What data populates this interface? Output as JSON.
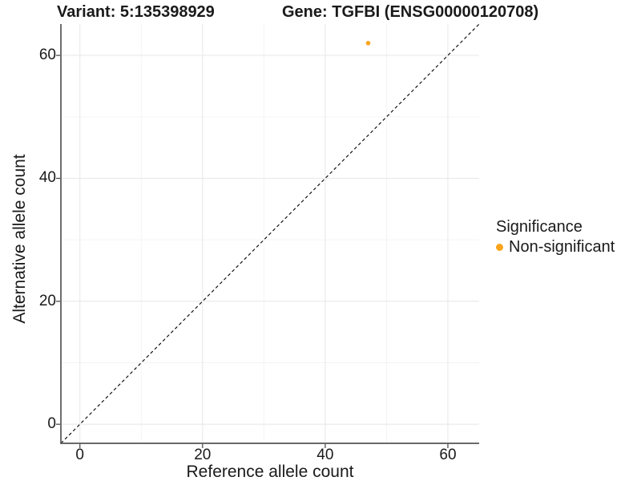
{
  "chart_data": {
    "type": "scatter",
    "title_left": "Variant: 5:135398929",
    "title_right": "Gene: TGFBI (ENSG00000120708)",
    "xlabel": "Reference allele count",
    "ylabel": "Alternative allele count",
    "xlim": [
      -3.1,
      65.1
    ],
    "ylim": [
      -3.1,
      65.1
    ],
    "x_ticks": [
      0,
      20,
      40,
      60
    ],
    "y_ticks": [
      0,
      20,
      40,
      60
    ],
    "x_minor_ticks": [
      10,
      30,
      50
    ],
    "y_minor_ticks": [
      10,
      30,
      50
    ],
    "grid": true,
    "points": [
      {
        "x": 47,
        "y": 62,
        "series": "Non-significant"
      }
    ],
    "reference_line": {
      "kind": "identity",
      "style": "dashed",
      "color": "#000000"
    },
    "legend": {
      "title": "Significance",
      "position": "right",
      "items": [
        {
          "label": "Non-significant",
          "color": "#FAA41B"
        }
      ]
    },
    "colors": {
      "point": "#FAA41B",
      "grid_major": "#E9E9E9",
      "grid_minor": "#F3F3F3",
      "axis_line": "#555555",
      "tick_mark": "#4D4D4D",
      "text": "#1A1A1A",
      "background": "#FFFFFF"
    }
  }
}
